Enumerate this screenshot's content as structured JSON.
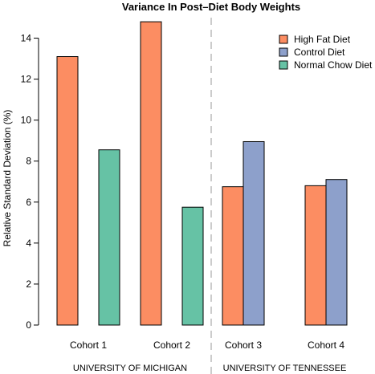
{
  "chart_data": {
    "type": "bar",
    "title": "Variance In Post–Diet Body Weights",
    "ylabel": "Relative Standard Deviation (%)",
    "xlabel": "",
    "ylim": [
      0,
      15
    ],
    "yticks": [
      0,
      2,
      4,
      6,
      8,
      10,
      12,
      14
    ],
    "categories": [
      "Cohort 1",
      "Cohort 2",
      "Cohort 3",
      "Cohort 4"
    ],
    "groups": [
      {
        "label": "UNIVERSITY OF MICHIGAN",
        "categories": [
          "Cohort 1",
          "Cohort 2"
        ]
      },
      {
        "label": "UNIVERSITY OF TENNESSEE",
        "categories": [
          "Cohort 3",
          "Cohort 4"
        ]
      }
    ],
    "series": [
      {
        "name": "High Fat Diet",
        "color": "#fc8d62",
        "values": [
          13.1,
          14.8,
          6.75,
          6.8
        ]
      },
      {
        "name": "Control Diet",
        "color": "#8da0cb",
        "values": [
          null,
          null,
          8.95,
          7.1
        ]
      },
      {
        "name": "Normal Chow Diet",
        "color": "#66c2a5",
        "values": [
          8.55,
          5.75,
          null,
          null
        ]
      }
    ],
    "legend_position": "top-right",
    "grid": false
  }
}
